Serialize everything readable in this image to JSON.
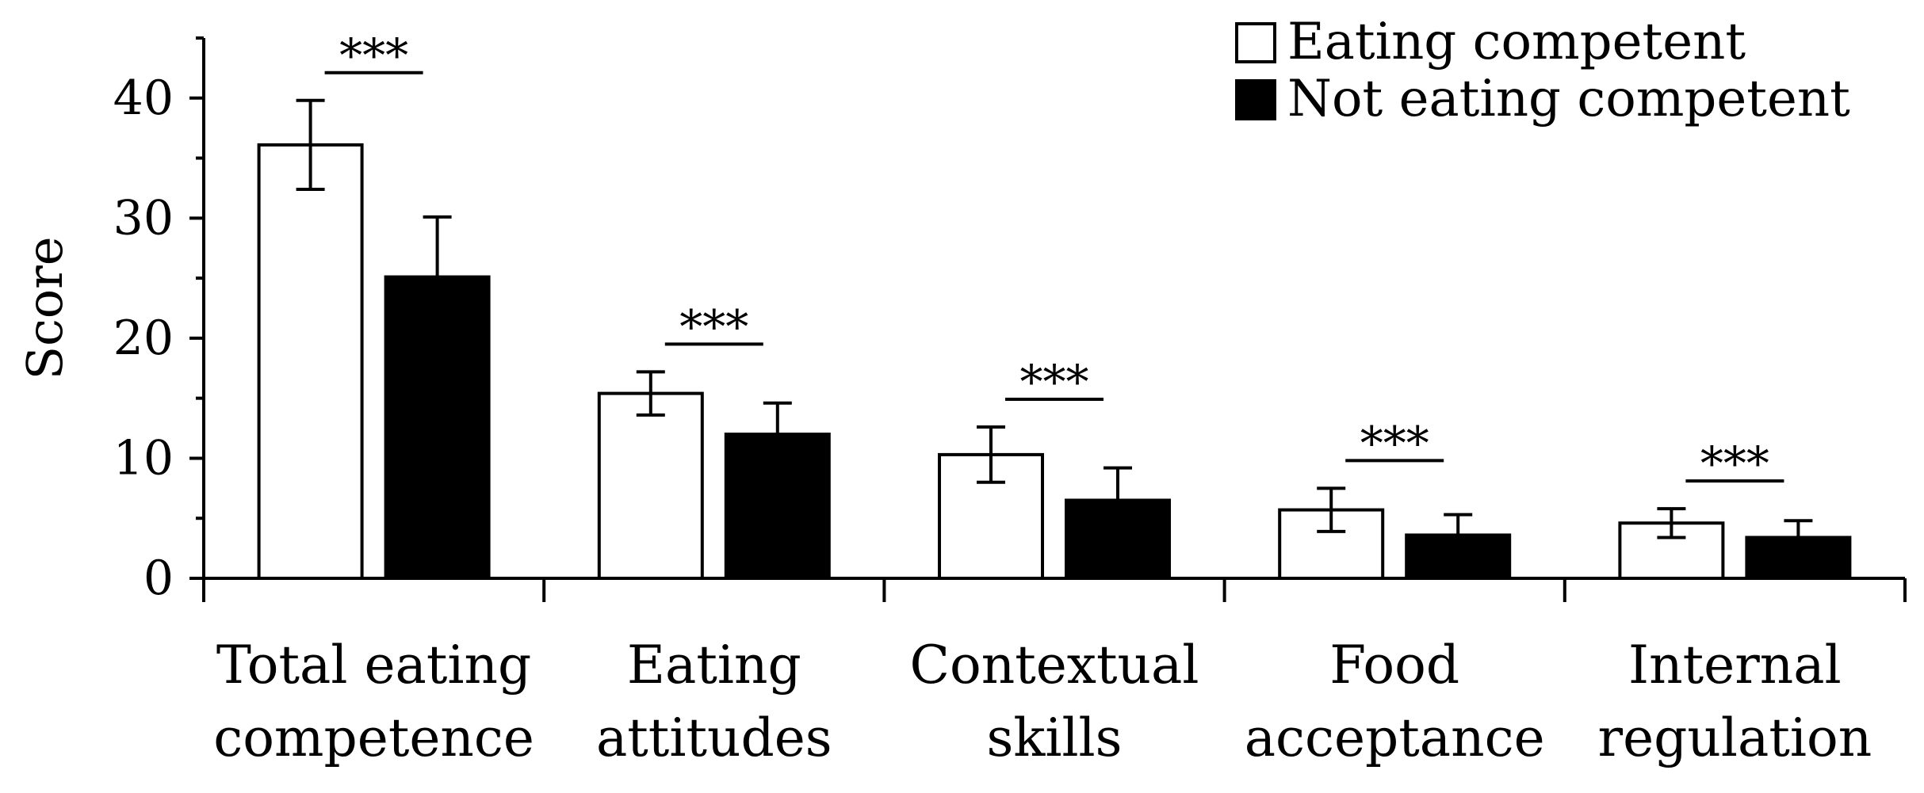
{
  "chart_data": {
    "type": "bar",
    "title": "",
    "xlabel": "",
    "ylabel": "Score",
    "ylim": [
      0,
      45
    ],
    "yticks": [
      0,
      10,
      20,
      30,
      40
    ],
    "categories": [
      [
        "Total eating",
        "competence"
      ],
      [
        "Eating",
        "attitudes"
      ],
      [
        "Contextual",
        "skills"
      ],
      [
        "Food",
        "acceptance"
      ],
      [
        "Internal",
        "regulation"
      ]
    ],
    "series": [
      {
        "name": "Eating competent",
        "fill": "#ffffff",
        "values": [
          36.1,
          15.4,
          10.3,
          5.7,
          4.6
        ],
        "errors": [
          3.7,
          1.8,
          2.3,
          1.8,
          1.2
        ]
      },
      {
        "name": "Not eating competent",
        "fill": "#000000",
        "values": [
          25.1,
          12.0,
          6.5,
          3.6,
          3.4
        ],
        "errors": [
          5.0,
          2.6,
          2.7,
          1.7,
          1.4
        ]
      }
    ],
    "significance": [
      "***",
      "***",
      "***",
      "***",
      "***"
    ],
    "legend": {
      "position": "top-right"
    }
  }
}
